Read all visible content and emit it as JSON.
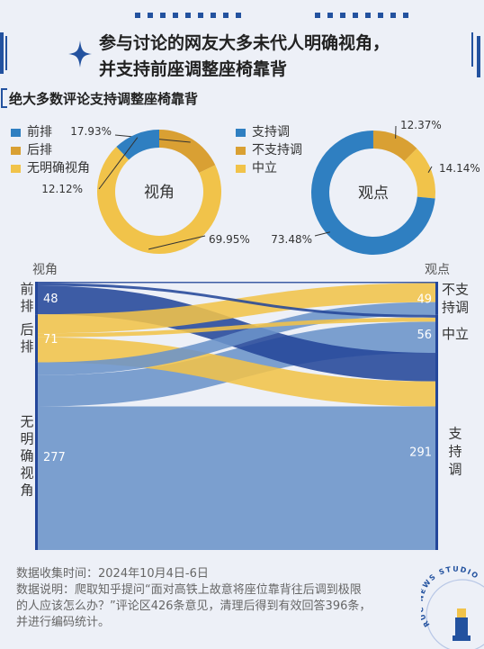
{
  "header": {
    "title_line1": "参与讨论的网友大多未代人明确视角，",
    "title_line2": "并支持前座调整座椅靠背"
  },
  "subtitle": "绝大多数评论支持调整座椅靠背",
  "colors": {
    "background": "#edf0f7",
    "blue": "#2f7fc1",
    "orange": "#d9a033",
    "yellow": "#f1c34a",
    "blue_light": "#6b93c9",
    "navy": "#24479a",
    "accent": "#23529f"
  },
  "watermark": "RUC NEWS STUDIO",
  "chart_data": [
    {
      "type": "pie",
      "variant": "donut",
      "center_label": "视角",
      "categories": [
        "前排",
        "后排",
        "无明确视角"
      ],
      "values": [
        12.12,
        17.93,
        69.95
      ],
      "value_labels": [
        "12.12%",
        "17.93%",
        "69.95%"
      ],
      "legend": [
        "前排",
        "后排",
        "无明确视角"
      ],
      "legend_position": "left",
      "colors": [
        "#2f7fc1",
        "#d9a033",
        "#f1c34a"
      ]
    },
    {
      "type": "pie",
      "variant": "donut",
      "center_label": "观点",
      "categories": [
        "支持调",
        "不支持调",
        "中立"
      ],
      "values": [
        73.48,
        12.37,
        14.14
      ],
      "value_labels": [
        "73.48%",
        "12.37%",
        "14.14%"
      ],
      "legend": [
        "支持调",
        "不支持调",
        "中立"
      ],
      "legend_position": "left",
      "colors": [
        "#2f7fc1",
        "#d9a033",
        "#f1c34a"
      ]
    },
    {
      "type": "sankey",
      "left_title": "视角",
      "right_title": "观点",
      "sources": [
        {
          "name": "前排",
          "value": 48
        },
        {
          "name": "后排",
          "value": 71
        },
        {
          "name": "无明确视角",
          "value": 277
        }
      ],
      "targets": [
        {
          "name": "不支持调",
          "value": 49
        },
        {
          "name": "中立",
          "value": 56
        },
        {
          "name": "支持调",
          "value": 291
        }
      ],
      "flows": [
        {
          "source": "前排",
          "target": "不支持调",
          "value": 2
        },
        {
          "source": "前排",
          "target": "中立",
          "value": 4
        },
        {
          "source": "前排",
          "target": "支持调",
          "value": 42
        },
        {
          "source": "后排",
          "target": "不支持调",
          "value": 28
        },
        {
          "source": "后排",
          "target": "中立",
          "value": 6
        },
        {
          "source": "后排",
          "target": "支持调",
          "value": 37
        },
        {
          "source": "无明确视角",
          "target": "不支持调",
          "value": 19
        },
        {
          "source": "无明确视角",
          "target": "中立",
          "value": 46
        },
        {
          "source": "无明确视角",
          "target": "支持调",
          "value": 212
        }
      ]
    }
  ],
  "footer": {
    "line1": "数据收集时间：2024年10月4日-6日",
    "line2": "数据说明：爬取知乎提问“面对高铁上故意将座位靠背往后调到极限",
    "line3": "的人应该怎么办？”评论区426条意见，清理后得到有效回答396条，",
    "line4": "并进行编码统计。"
  }
}
